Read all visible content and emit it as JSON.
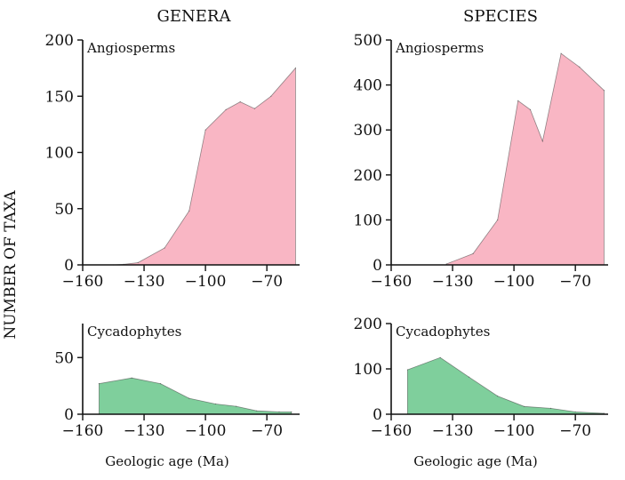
{
  "figure": {
    "ylabel": "NUMBER OF TAXA",
    "column_titles": [
      "GENERA",
      "SPECIES"
    ],
    "fill_colors": {
      "angiosperms": "#f9b6c4",
      "cycadophytes": "#7fcf9c"
    }
  },
  "chart_data": [
    {
      "type": "area",
      "column": "GENERA",
      "label": "Angiosperms",
      "color": "#f9b6c4",
      "x": [
        -145,
        -140,
        -133,
        -120,
        -108,
        -100,
        -90,
        -83,
        -76,
        -68,
        -56
      ],
      "y": [
        0,
        0.5,
        2,
        15,
        48,
        120,
        138,
        145,
        139,
        150,
        175
      ],
      "xlim": [
        -160,
        -54
      ],
      "ylim": [
        0,
        200
      ],
      "xticks": [
        -160,
        -130,
        -100,
        -70
      ],
      "xticklabels": [
        "−160",
        "−130",
        "−100",
        "−70"
      ],
      "yticks": [
        0,
        50,
        100,
        150,
        200
      ],
      "yticklabels": [
        "0",
        "50",
        "100",
        "150",
        "200"
      ],
      "xlabel": ""
    },
    {
      "type": "area",
      "column": "SPECIES",
      "label": "Angiosperms",
      "color": "#f9b6c4",
      "x": [
        -133,
        -120,
        -108,
        -98,
        -92,
        -86,
        -77,
        -68,
        -56
      ],
      "y": [
        2,
        25,
        100,
        365,
        345,
        275,
        470,
        440,
        388
      ],
      "xlim": [
        -160,
        -54
      ],
      "ylim": [
        0,
        500
      ],
      "xticks": [
        -160,
        -130,
        -100,
        -70
      ],
      "xticklabels": [
        "−160",
        "−130",
        "−100",
        "−70"
      ],
      "yticks": [
        0,
        100,
        200,
        300,
        400,
        500
      ],
      "yticklabels": [
        "0",
        "100",
        "200",
        "300",
        "400",
        "500"
      ],
      "xlabel": ""
    },
    {
      "type": "area",
      "column": "GENERA",
      "label": "Cycadophytes",
      "color": "#7fcf9c",
      "x": [
        -152,
        -136,
        -122,
        -108,
        -95,
        -85,
        -75,
        -64,
        -58
      ],
      "y": [
        27,
        32,
        27,
        14,
        9,
        7,
        3,
        2,
        2
      ],
      "xlim": [
        -160,
        -54
      ],
      "ylim": [
        0,
        80
      ],
      "xticks": [
        -160,
        -130,
        -100,
        -70
      ],
      "xticklabels": [
        "−160",
        "−130",
        "−100",
        "−70"
      ],
      "yticks": [
        0,
        50
      ],
      "yticklabels": [
        "0",
        "50"
      ],
      "xlabel": "Geologic age (Ma)"
    },
    {
      "type": "area",
      "column": "SPECIES",
      "label": "Cycadophytes",
      "color": "#7fcf9c",
      "x": [
        -152,
        -136,
        -122,
        -108,
        -95,
        -82,
        -70,
        -56
      ],
      "y": [
        98,
        125,
        82,
        40,
        17,
        13,
        5,
        2
      ],
      "xlim": [
        -160,
        -54
      ],
      "ylim": [
        0,
        200
      ],
      "xticks": [
        -160,
        -130,
        -100,
        -70
      ],
      "xticklabels": [
        "−160",
        "−130",
        "−100",
        "−70"
      ],
      "yticks": [
        0,
        100,
        200
      ],
      "yticklabels": [
        "0",
        "100",
        "200"
      ],
      "xlabel": "Geologic age (Ma)"
    }
  ]
}
